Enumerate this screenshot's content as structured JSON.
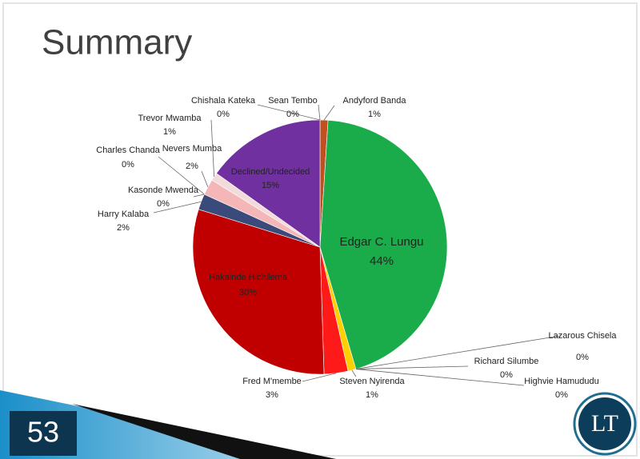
{
  "chart_data": {
    "type": "pie",
    "title": "Summary",
    "categories": [
      "Andyford Banda",
      "Edgar C. Lungu",
      "Highvie Hamududu",
      "Richard Silumbe",
      "Lazarous Chisela",
      "Steven Nyirenda",
      "Fred M'membe",
      "Hakainde Hichilema",
      "Harry Kalaba",
      "Kasonde Mwenda",
      "Charles Chanda",
      "Nevers Mumba",
      "Trevor Mwamba",
      "Declined/Undecided",
      "Chishala Kateka",
      "Sean Tembo"
    ],
    "values": [
      1,
      44,
      0,
      0,
      0,
      1,
      3,
      30,
      2,
      0,
      0,
      2,
      1,
      15,
      0,
      0
    ],
    "value_labels": [
      "1%",
      "44%",
      "0%",
      "0%",
      "0%",
      "1%",
      "3%",
      "30%",
      "2%",
      "0%",
      "0%",
      "2%",
      "1%",
      "15%",
      "0%",
      "0%"
    ],
    "colors": [
      "#c0501f",
      "#1aab4a",
      "#7f7f7f",
      "#4f81bd",
      "#f7a600",
      "#ffd000",
      "#ff1a1a",
      "#c00000",
      "#3a4a7a",
      "#9aaab0",
      "#cccccc",
      "#f4b6b6",
      "#f2dcdb",
      "#7030a0",
      "#4f6fb0",
      "#5080c0"
    ]
  },
  "slide": {
    "number": "53",
    "logo": "LT"
  }
}
